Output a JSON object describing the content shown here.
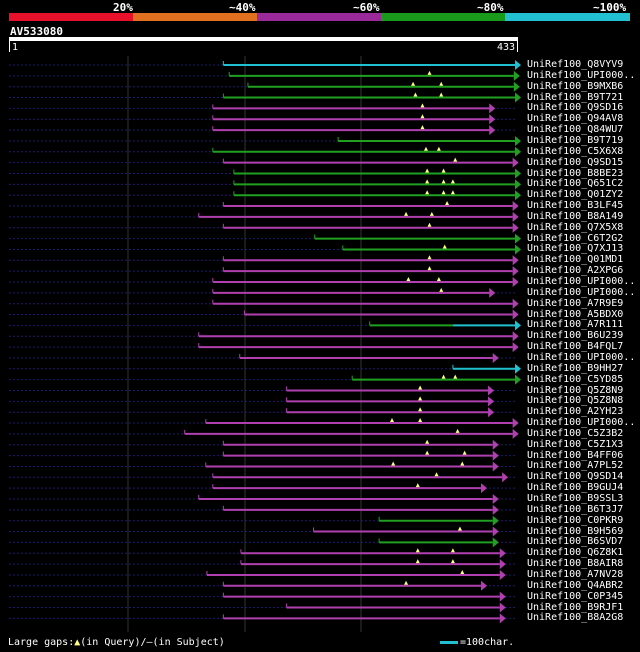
{
  "scale": {
    "segments": [
      {
        "color": "#e8102a",
        "label": "20%"
      },
      {
        "color": "#e07020",
        "label": "~40%"
      },
      {
        "color": "#9a2a9a",
        "label": "~60%"
      },
      {
        "color": "#1a9a1a",
        "label": "~80%"
      },
      {
        "color": "#22c0d0",
        "label": "~100%"
      }
    ]
  },
  "query": {
    "id": "AV533080",
    "start": "1",
    "end": "433",
    "length": 433
  },
  "colors": {
    "magenta": "#b040b0",
    "green": "#20a020",
    "cyan": "#20c0d0",
    "dots": "#1a1a70",
    "grid": "#333333",
    "white": "#ffffff"
  },
  "hits": [
    {
      "label": "UniRef100_Q8VYV9",
      "color": "cyan",
      "start": 184,
      "end": 433,
      "arrow": true,
      "marks": []
    },
    {
      "label": "UniRef100_UPI000..",
      "color": "green",
      "start": 189,
      "end": 432,
      "arrow": true,
      "marks": [
        360
      ]
    },
    {
      "label": "UniRef100_B9MXB6",
      "color": "green",
      "start": 205,
      "end": 432,
      "arrow": true,
      "marks": [
        346,
        370
      ]
    },
    {
      "label": "UniRef100_B9T721",
      "color": "green",
      "start": 184,
      "end": 433,
      "arrow": true,
      "marks": [
        348,
        370
      ]
    },
    {
      "label": "UniRef100_Q9SD16",
      "color": "magenta",
      "start": 175,
      "end": 411,
      "arrow": true,
      "marks": [
        354
      ]
    },
    {
      "label": "UniRef100_Q94AV8",
      "color": "magenta",
      "start": 175,
      "end": 411,
      "arrow": true,
      "marks": [
        354
      ]
    },
    {
      "label": "UniRef100_Q84WU7",
      "color": "magenta",
      "start": 175,
      "end": 411,
      "arrow": true,
      "marks": [
        354
      ]
    },
    {
      "label": "UniRef100_B9T719",
      "color": "green",
      "start": 282,
      "end": 433,
      "arrow": true,
      "marks": []
    },
    {
      "label": "UniRef100_C5X6X8",
      "color": "green",
      "start": 175,
      "end": 433,
      "arrow": true,
      "marks": [
        357,
        368
      ]
    },
    {
      "label": "UniRef100_Q9SD15",
      "color": "magenta",
      "start": 184,
      "end": 431,
      "arrow": true,
      "marks": [
        382
      ]
    },
    {
      "label": "UniRef100_B8BE23",
      "color": "green",
      "start": 193,
      "end": 433,
      "arrow": true,
      "marks": [
        358,
        372
      ]
    },
    {
      "label": "UniRef100_Q651C2",
      "color": "green",
      "start": 193,
      "end": 433,
      "arrow": true,
      "marks": [
        358,
        372,
        380
      ]
    },
    {
      "label": "UniRef100_Q01ZY2",
      "color": "green",
      "start": 193,
      "end": 433,
      "arrow": true,
      "marks": [
        358,
        372,
        380
      ]
    },
    {
      "label": "UniRef100_B3LF45",
      "color": "magenta",
      "start": 184,
      "end": 431,
      "arrow": true,
      "marks": [
        375
      ]
    },
    {
      "label": "UniRef100_B8A149",
      "color": "magenta",
      "start": 163,
      "end": 431,
      "arrow": true,
      "marks": [
        340,
        362
      ]
    },
    {
      "label": "UniRef100_Q7X5X8",
      "color": "magenta",
      "start": 184,
      "end": 431,
      "arrow": true,
      "marks": [
        360
      ]
    },
    {
      "label": "UniRef100_C6T2G2",
      "color": "green",
      "start": 262,
      "end": 433,
      "arrow": true,
      "marks": []
    },
    {
      "label": "UniRef100_Q7XJ13",
      "color": "green",
      "start": 286,
      "end": 433,
      "arrow": true,
      "marks": [
        373
      ]
    },
    {
      "label": "UniRef100_Q01MD1",
      "color": "magenta",
      "start": 184,
      "end": 431,
      "arrow": true,
      "marks": [
        360
      ]
    },
    {
      "label": "UniRef100_A2XPG6",
      "color": "magenta",
      "start": 184,
      "end": 431,
      "arrow": true,
      "marks": [
        360
      ]
    },
    {
      "label": "UniRef100_UPI000..",
      "color": "magenta",
      "start": 175,
      "end": 431,
      "arrow": true,
      "marks": [
        342,
        368
      ]
    },
    {
      "label": "UniRef100_UPI000..",
      "color": "magenta",
      "start": 175,
      "end": 411,
      "arrow": true,
      "marks": [
        370
      ]
    },
    {
      "label": "UniRef100_A7R9E9",
      "color": "magenta",
      "start": 175,
      "end": 431,
      "arrow": true,
      "marks": []
    },
    {
      "label": "UniRef100_A5BDX0",
      "color": "magenta",
      "start": 202,
      "end": 431,
      "arrow": true,
      "marks": []
    },
    {
      "label": "UniRef100_A7R111",
      "color": "green",
      "start": 309,
      "end": 380,
      "arrow": false,
      "marks": [],
      "tail": {
        "color": "cyan",
        "start": 380,
        "end": 433
      }
    },
    {
      "label": "UniRef100_B6U239",
      "color": "magenta",
      "start": 163,
      "end": 431,
      "arrow": true,
      "marks": []
    },
    {
      "label": "UniRef100_B4FQL7",
      "color": "magenta",
      "start": 163,
      "end": 431,
      "arrow": true,
      "marks": []
    },
    {
      "label": "UniRef100_UPI000..",
      "color": "magenta",
      "start": 198,
      "end": 414,
      "arrow": true,
      "marks": []
    },
    {
      "label": "UniRef100_B9HH27",
      "color": "cyan",
      "start": 380,
      "end": 433,
      "arrow": true,
      "marks": []
    },
    {
      "label": "UniRef100_C5YD85",
      "color": "green",
      "start": 294,
      "end": 433,
      "arrow": true,
      "marks": [
        372,
        382
      ]
    },
    {
      "label": "UniRef100_Q5Z8N9",
      "color": "magenta",
      "start": 238,
      "end": 410,
      "arrow": true,
      "marks": [
        352
      ]
    },
    {
      "label": "UniRef100_Q5Z8N8",
      "color": "magenta",
      "start": 238,
      "end": 410,
      "arrow": true,
      "marks": [
        352
      ]
    },
    {
      "label": "UniRef100_A2YH23",
      "color": "magenta",
      "start": 238,
      "end": 410,
      "arrow": true,
      "marks": [
        352
      ]
    },
    {
      "label": "UniRef100_UPI000..",
      "color": "magenta",
      "start": 169,
      "end": 431,
      "arrow": true,
      "marks": [
        328,
        352
      ]
    },
    {
      "label": "UniRef100_C5Z3B2",
      "color": "magenta",
      "start": 151,
      "end": 431,
      "arrow": true,
      "marks": [
        384
      ]
    },
    {
      "label": "UniRef100_C5Z1X3",
      "color": "magenta",
      "start": 184,
      "end": 414,
      "arrow": true,
      "marks": [
        358
      ]
    },
    {
      "label": "UniRef100_B4FF06",
      "color": "magenta",
      "start": 184,
      "end": 414,
      "arrow": true,
      "marks": [
        358,
        390
      ]
    },
    {
      "label": "UniRef100_A7PL52",
      "color": "magenta",
      "start": 169,
      "end": 414,
      "arrow": true,
      "marks": [
        329,
        388
      ]
    },
    {
      "label": "UniRef100_Q9SD14",
      "color": "magenta",
      "start": 175,
      "end": 422,
      "arrow": true,
      "marks": [
        366
      ]
    },
    {
      "label": "UniRef100_B9GUJ4",
      "color": "magenta",
      "start": 175,
      "end": 404,
      "arrow": true,
      "marks": [
        350
      ]
    },
    {
      "label": "UniRef100_B9SSL3",
      "color": "magenta",
      "start": 163,
      "end": 414,
      "arrow": true,
      "marks": []
    },
    {
      "label": "UniRef100_B6T3J7",
      "color": "magenta",
      "start": 184,
      "end": 414,
      "arrow": true,
      "marks": []
    },
    {
      "label": "UniRef100_C0PKR9",
      "color": "green",
      "start": 317,
      "end": 414,
      "arrow": true,
      "marks": []
    },
    {
      "label": "UniRef100_B9H569",
      "color": "magenta",
      "start": 261,
      "end": 414,
      "arrow": true,
      "marks": [
        386
      ]
    },
    {
      "label": "UniRef100_B6SVD7",
      "color": "green",
      "start": 317,
      "end": 414,
      "arrow": true,
      "marks": []
    },
    {
      "label": "UniRef100_Q6Z8K1",
      "color": "magenta",
      "start": 199,
      "end": 420,
      "arrow": true,
      "marks": [
        350,
        380
      ]
    },
    {
      "label": "UniRef100_B8AIR8",
      "color": "magenta",
      "start": 199,
      "end": 420,
      "arrow": true,
      "marks": [
        350,
        380
      ]
    },
    {
      "label": "UniRef100_A7NV28",
      "color": "magenta",
      "start": 170,
      "end": 420,
      "arrow": true,
      "marks": [
        388
      ]
    },
    {
      "label": "UniRef100_Q4ABR2",
      "color": "magenta",
      "start": 184,
      "end": 404,
      "arrow": true,
      "marks": [
        340
      ]
    },
    {
      "label": "UniRef100_C0P345",
      "color": "magenta",
      "start": 184,
      "end": 420,
      "arrow": true,
      "marks": []
    },
    {
      "label": "UniRef100_B9RJF1",
      "color": "magenta",
      "start": 238,
      "end": 420,
      "arrow": true,
      "marks": []
    },
    {
      "label": "UniRef100_B8A2G8",
      "color": "magenta",
      "start": 184,
      "end": 420,
      "arrow": true,
      "marks": []
    }
  ],
  "legend": {
    "left_text": "Large gaps:",
    "query_gap": "(in Query)/",
    "subject_gap": "(in Subject)",
    "dash": "—",
    "scale_text": "=100char."
  }
}
